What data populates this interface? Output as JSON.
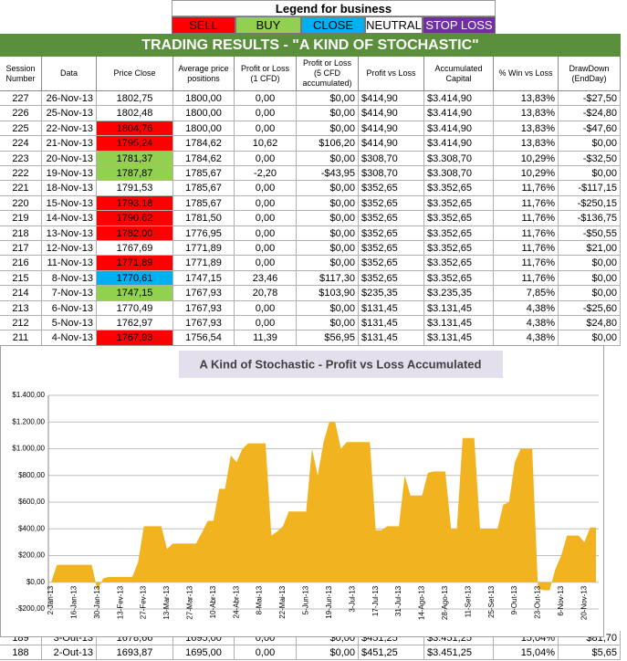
{
  "legend": {
    "title": "Legend for business",
    "items": [
      {
        "label": "SELL",
        "color": "#ff0000"
      },
      {
        "label": "BUY",
        "color": "#92d050"
      },
      {
        "label": "CLOSE",
        "color": "#00b0f0"
      },
      {
        "label": "NEUTRAL",
        "color": "#ffffff"
      },
      {
        "label": "STOP LOSS",
        "color": "#7030a0"
      }
    ]
  },
  "table": {
    "title": "TRADING RESULTS - \"A KIND OF STOCHASTIC\"",
    "headers": [
      "Session Number",
      "Data",
      "Price Close",
      "Average price positions",
      "Profit or Loss (1 CFD)",
      "Profit or Loss (5 CFD accumulated)",
      "Profit vs Loss",
      "Accumulated Capital",
      "% Win vs Loss",
      "DrawDown (EndDay)"
    ],
    "rows": [
      [
        "227",
        "26-Nov-13",
        "1802,75",
        "1800,00",
        "0,00",
        "$0,00",
        "$414,90",
        "$3.414,90",
        "13,83%",
        "-$27,50"
      ],
      [
        "226",
        "25-Nov-13",
        "1802,48",
        "1800,00",
        "0,00",
        "$0,00",
        "$414,90",
        "$3.414,90",
        "13,83%",
        "-$24,80"
      ],
      [
        "225",
        "22-Nov-13",
        "1804,76",
        "1800,00",
        "0,00",
        "$0,00",
        "$414,90",
        "$3.414,90",
        "13,83%",
        "-$47,60"
      ],
      [
        "224",
        "21-Nov-13",
        "1795,24",
        "1784,62",
        "10,62",
        "$106,20",
        "$414,90",
        "$3.414,90",
        "13,83%",
        "$0,00"
      ],
      [
        "223",
        "20-Nov-13",
        "1781,37",
        "1784,62",
        "0,00",
        "$0,00",
        "$308,70",
        "$3.308,70",
        "10,29%",
        "-$32,50"
      ],
      [
        "222",
        "19-Nov-13",
        "1787,87",
        "1785,67",
        "-2,20",
        "-$43,95",
        "$308,70",
        "$3.308,70",
        "10,29%",
        "$0,00"
      ],
      [
        "221",
        "18-Nov-13",
        "1791,53",
        "1785,67",
        "0,00",
        "$0,00",
        "$352,65",
        "$3.352,65",
        "11,76%",
        "-$117,15"
      ],
      [
        "220",
        "15-Nov-13",
        "1793,18",
        "1785,67",
        "0,00",
        "$0,00",
        "$352,65",
        "$3.352,65",
        "11,76%",
        "-$250,15"
      ],
      [
        "219",
        "14-Nov-13",
        "1790,62",
        "1781,50",
        "0,00",
        "$0,00",
        "$352,65",
        "$3.352,65",
        "11,76%",
        "-$136,75"
      ],
      [
        "218",
        "13-Nov-13",
        "1782,00",
        "1776,95",
        "0,00",
        "$0,00",
        "$352,65",
        "$3.352,65",
        "11,76%",
        "-$50,55"
      ],
      [
        "217",
        "12-Nov-13",
        "1767,69",
        "1771,89",
        "0,00",
        "$0,00",
        "$352,65",
        "$3.352,65",
        "11,76%",
        "$21,00"
      ],
      [
        "216",
        "11-Nov-13",
        "1771,89",
        "1771,89",
        "0,00",
        "$0,00",
        "$352,65",
        "$3.352,65",
        "11,76%",
        "$0,00"
      ],
      [
        "215",
        "8-Nov-13",
        "1770,61",
        "1747,15",
        "23,46",
        "$117,30",
        "$352,65",
        "$3.352,65",
        "11,76%",
        "$0,00"
      ],
      [
        "214",
        "7-Nov-13",
        "1747,15",
        "1767,93",
        "20,78",
        "$103,90",
        "$235,35",
        "$3.235,35",
        "7,85%",
        "$0,00"
      ],
      [
        "213",
        "6-Nov-13",
        "1770,49",
        "1767,93",
        "0,00",
        "$0,00",
        "$131,45",
        "$3.131,45",
        "4,38%",
        "-$25,60"
      ],
      [
        "212",
        "5-Nov-13",
        "1762,97",
        "1767,93",
        "0,00",
        "$0,00",
        "$131,45",
        "$3.131,45",
        "4,38%",
        "$24,80"
      ],
      [
        "211",
        "4-Nov-13",
        "1767,93",
        "1756,54",
        "11,39",
        "$56,95",
        "$131,45",
        "$3.131,45",
        "4,38%",
        "$0,00"
      ],
      [
        "189",
        "3-Out-13",
        "1678,66",
        "1695,00",
        "0,00",
        "$0,00",
        "$451,25",
        "$3.451,25",
        "15,04%",
        "$81,70"
      ],
      [
        "188",
        "2-Out-13",
        "1693,87",
        "1695,00",
        "0,00",
        "$0,00",
        "$451,25",
        "$3.451,25",
        "15,04%",
        "$5,65"
      ]
    ],
    "price_colors": [
      null,
      null,
      "#ff0000",
      "#ff0000",
      "#92d050",
      "#92d050",
      null,
      "#ff0000",
      "#ff0000",
      "#ff0000",
      null,
      "#ff0000",
      "#00b0f0",
      "#92d050",
      null,
      null,
      "#ff0000",
      null,
      null
    ]
  },
  "chart_data": {
    "type": "area",
    "title": "A Kind of Stochastic - Profit vs Loss Accumulated",
    "categories": [
      "2-Jan-13",
      null,
      null,
      null,
      "16-Jan-13",
      null,
      null,
      null,
      "30-Jan-13",
      null,
      null,
      null,
      "13-Fev-13",
      null,
      null,
      null,
      "27-Fev-13",
      null,
      null,
      null,
      "13-Mar-13",
      null,
      null,
      null,
      "27-Mar-13",
      null,
      null,
      null,
      "10-Abr-13",
      null,
      null,
      null,
      "24-Abr-13",
      null,
      null,
      null,
      "8-Mai-13",
      null,
      null,
      null,
      "22-Mai-13",
      null,
      null,
      null,
      "5-Jun-13",
      null,
      null,
      null,
      "19-Jun-13",
      null,
      null,
      null,
      "3-Jul-13",
      null,
      null,
      null,
      "17-Jul-13",
      null,
      null,
      null,
      "31-Jul-13",
      null,
      null,
      null,
      "14-Ago-13",
      null,
      null,
      null,
      "28-Ago-13",
      null,
      null,
      null,
      "11-Set-13",
      null,
      null,
      null,
      "25-Set-13",
      null,
      null,
      null,
      "9-Out-13",
      null,
      null,
      null,
      "23-Out-13",
      null,
      null,
      null,
      "6-Nov-13",
      null,
      null,
      null,
      "20-Nov-13",
      null,
      null
    ],
    "values": [
      0,
      130,
      131,
      131,
      131,
      131,
      131,
      131,
      -60,
      30,
      40,
      40,
      40,
      40,
      40,
      150,
      420,
      420,
      420,
      420,
      250,
      290,
      290,
      290,
      290,
      290,
      370,
      460,
      460,
      700,
      700,
      950,
      900,
      1000,
      1040,
      1040,
      1040,
      1040,
      350,
      380,
      420,
      530,
      530,
      530,
      530,
      1000,
      800,
      1050,
      1200,
      1200,
      1000,
      1050,
      1050,
      1050,
      1050,
      1050,
      390,
      390,
      420,
      420,
      420,
      800,
      650,
      650,
      650,
      820,
      830,
      830,
      830,
      400,
      400,
      1080,
      1080,
      1080,
      400,
      400,
      400,
      400,
      580,
      600,
      900,
      1000,
      1000,
      1000,
      -50,
      -60,
      -60,
      100,
      200,
      350,
      350,
      350,
      300,
      410,
      410
    ],
    "color": "#f2b320",
    "ylim": [
      -200,
      1400
    ],
    "yticks": [
      {
        "value": -200,
        "label": "-$200,00"
      },
      {
        "value": 0,
        "label": "$0,00"
      },
      {
        "value": 200,
        "label": "$200,00"
      },
      {
        "value": 400,
        "label": "$400,00"
      },
      {
        "value": 600,
        "label": "$600,00"
      },
      {
        "value": 800,
        "label": "$800,00"
      },
      {
        "value": 1000,
        "label": "$1.000,00"
      },
      {
        "value": 1200,
        "label": "$1.200,00"
      },
      {
        "value": 1400,
        "label": "$1.400,00"
      }
    ],
    "grid": true
  }
}
